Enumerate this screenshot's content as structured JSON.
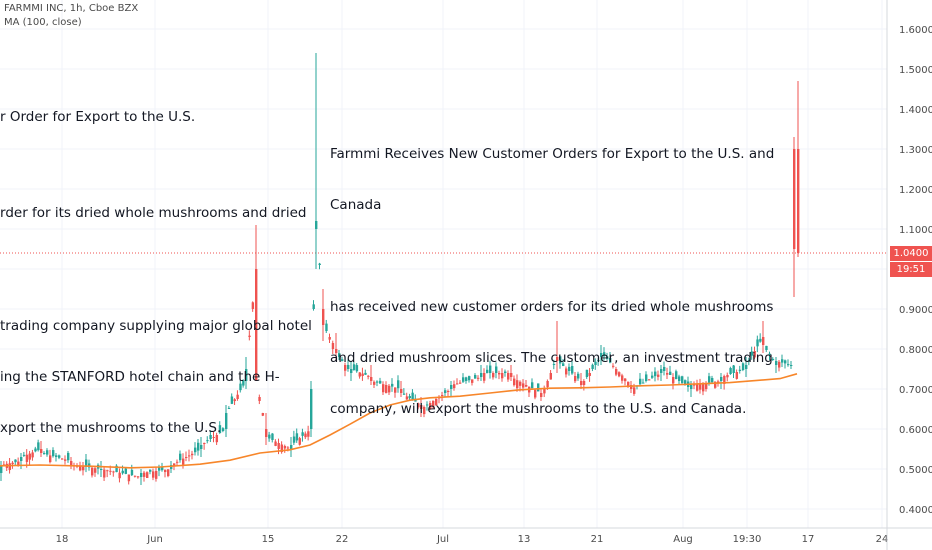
{
  "header": {
    "symbol_line": "FARMMI INC, 1h, Cboe BZX",
    "indicator_line": "MA (100, close)"
  },
  "annotations": {
    "left_title": "r Order for Export to the U.S.",
    "left_line1": "rder for its dried whole mushrooms and dried",
    "left_para_l1": "trading company supplying major global hotel",
    "left_para_l2": "ing the STANFORD hotel chain and the H-",
    "left_para_l3": "xport the mushrooms to the U.S.",
    "right_title_l1": "Farmmi Receives New Customer Orders for Export to the U.S. and",
    "right_title_l2": "Canada",
    "right_para_l1": "has received new customer orders for its dried whole mushrooms",
    "right_para_l2": "and dried mushroom slices. The customer, an investment trading",
    "right_para_l3": "company, will export the mushrooms to the U.S. and Canada."
  },
  "price_tags": {
    "last_price": "1.0400",
    "countdown": "19:51"
  },
  "colors": {
    "up": "#26a69a",
    "down": "#ef5350",
    "ma": "#f7862a",
    "grid": "#f0f3fa",
    "axis_text": "#4a4a4a"
  },
  "chart_data": {
    "type": "candlestick",
    "title": "FARMMI INC, 1h, Cboe BZX",
    "ylim": [
      0.37,
      1.66
    ],
    "y_ticks": [
      "1.6000",
      "1.5000",
      "1.4000",
      "1.3000",
      "1.2000",
      "1.1000",
      "1.0000",
      "0.9000",
      "0.8000",
      "0.7000",
      "0.6000",
      "0.5000",
      "0.4000"
    ],
    "x_ticks": [
      "18",
      "Jun",
      "15",
      "22",
      "Jul",
      "13",
      "21",
      "Aug",
      "19:30",
      "17",
      "24"
    ],
    "last_price": 1.04,
    "series": [
      {
        "name": "MA (100, close)",
        "values": [
          [
            0,
            0.508
          ],
          [
            40,
            0.51
          ],
          [
            90,
            0.507
          ],
          [
            130,
            0.503
          ],
          [
            160,
            0.505
          ],
          [
            200,
            0.512
          ],
          [
            230,
            0.522
          ],
          [
            260,
            0.54
          ],
          [
            290,
            0.548
          ],
          [
            310,
            0.56
          ],
          [
            330,
            0.585
          ],
          [
            350,
            0.612
          ],
          [
            370,
            0.64
          ],
          [
            390,
            0.66
          ],
          [
            410,
            0.672
          ],
          [
            430,
            0.678
          ],
          [
            460,
            0.682
          ],
          [
            490,
            0.69
          ],
          [
            520,
            0.698
          ],
          [
            550,
            0.702
          ],
          [
            580,
            0.703
          ],
          [
            610,
            0.705
          ],
          [
            640,
            0.708
          ],
          [
            670,
            0.71
          ],
          [
            700,
            0.713
          ],
          [
            730,
            0.716
          ],
          [
            760,
            0.722
          ],
          [
            780,
            0.726
          ],
          [
            797,
            0.738
          ]
        ]
      }
    ],
    "candles_ohlc_samples": [
      [
        0,
        0.49,
        0.52,
        0.47,
        0.51
      ],
      [
        20,
        0.52,
        0.54,
        0.5,
        0.53
      ],
      [
        40,
        0.55,
        0.57,
        0.53,
        0.54
      ],
      [
        70,
        0.52,
        0.53,
        0.5,
        0.51
      ],
      [
        100,
        0.5,
        0.52,
        0.48,
        0.5
      ],
      [
        140,
        0.48,
        0.5,
        0.46,
        0.49
      ],
      [
        170,
        0.5,
        0.52,
        0.49,
        0.51
      ],
      [
        200,
        0.55,
        0.58,
        0.53,
        0.56
      ],
      [
        225,
        0.6,
        0.66,
        0.58,
        0.64
      ],
      [
        245,
        0.72,
        0.78,
        0.7,
        0.75
      ],
      [
        255,
        1.0,
        1.11,
        0.95,
        0.72
      ],
      [
        265,
        0.6,
        0.64,
        0.56,
        0.58
      ],
      [
        290,
        0.55,
        0.58,
        0.53,
        0.56
      ],
      [
        310,
        0.6,
        0.72,
        0.58,
        0.7
      ],
      [
        315,
        1.1,
        1.54,
        1.0,
        1.12
      ],
      [
        322,
        0.9,
        0.95,
        0.82,
        0.86
      ],
      [
        335,
        0.8,
        0.84,
        0.77,
        0.79
      ],
      [
        350,
        0.74,
        0.77,
        0.72,
        0.75
      ],
      [
        370,
        0.73,
        0.76,
        0.71,
        0.72
      ],
      [
        400,
        0.7,
        0.72,
        0.68,
        0.69
      ],
      [
        420,
        0.66,
        0.68,
        0.63,
        0.65
      ],
      [
        450,
        0.7,
        0.72,
        0.68,
        0.71
      ],
      [
        480,
        0.73,
        0.76,
        0.72,
        0.74
      ],
      [
        510,
        0.74,
        0.76,
        0.72,
        0.73
      ],
      [
        540,
        0.69,
        0.7,
        0.67,
        0.68
      ],
      [
        556,
        0.78,
        0.87,
        0.74,
        0.77
      ],
      [
        580,
        0.72,
        0.74,
        0.7,
        0.71
      ],
      [
        600,
        0.78,
        0.81,
        0.76,
        0.79
      ],
      [
        630,
        0.71,
        0.72,
        0.69,
        0.7
      ],
      [
        660,
        0.74,
        0.76,
        0.72,
        0.75
      ],
      [
        690,
        0.7,
        0.72,
        0.68,
        0.71
      ],
      [
        720,
        0.72,
        0.74,
        0.7,
        0.73
      ],
      [
        745,
        0.75,
        0.78,
        0.73,
        0.76
      ],
      [
        762,
        0.83,
        0.87,
        0.79,
        0.81
      ],
      [
        775,
        0.76,
        0.78,
        0.74,
        0.77
      ],
      [
        790,
        0.76,
        0.77,
        0.75,
        0.76
      ],
      [
        793,
        1.3,
        1.33,
        0.93,
        1.05
      ],
      [
        797,
        1.3,
        1.47,
        1.03,
        1.04
      ]
    ]
  }
}
